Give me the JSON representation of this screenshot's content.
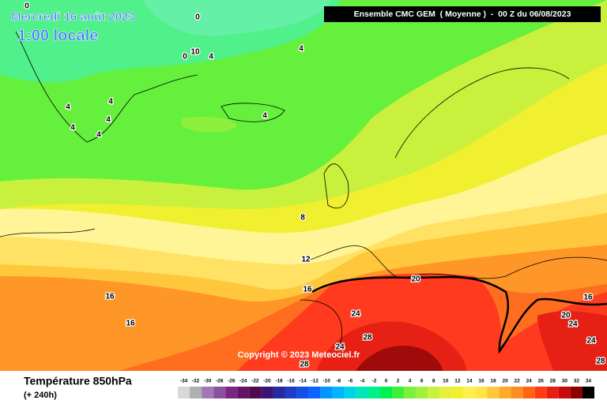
{
  "header": {
    "date": "Mercredi 16 août 2023",
    "time": "1:00 locale",
    "model": "Ensemble CMC GEM  ( Moyenne )  -  00 Z du 06/08/2023"
  },
  "footer": {
    "title": "Température 850hPa",
    "subtitle": "(+ 240h)",
    "copyright": "Copyright © 2023 Meteociel.fr"
  },
  "scale": {
    "labels": [
      -34,
      -32,
      -30,
      -28,
      -26,
      -24,
      -22,
      -20,
      -18,
      -16,
      -14,
      -12,
      -10,
      -8,
      -6,
      -4,
      -2,
      0,
      2,
      4,
      6,
      8,
      10,
      12,
      14,
      16,
      18,
      20,
      22,
      24,
      26,
      28,
      30,
      32,
      34
    ],
    "colors": [
      "#d8d8d8",
      "#b0b0b0",
      "#a078b4",
      "#8c50a0",
      "#782882",
      "#641464",
      "#500a50",
      "#3c1478",
      "#2828a0",
      "#1e3cc8",
      "#1450e6",
      "#0a64ff",
      "#0096ff",
      "#00b4ff",
      "#00d2e6",
      "#00e6b4",
      "#00f08c",
      "#00f050",
      "#3cf03c",
      "#78f03c",
      "#a0f03c",
      "#c8f03c",
      "#e6f03c",
      "#f0f030",
      "#fff050",
      "#ffe646",
      "#ffc83c",
      "#ffaa28",
      "#ff8c1e",
      "#ff6414",
      "#ff3c14",
      "#e61e14",
      "#c80a0a",
      "#8c0000",
      "#000000"
    ]
  },
  "map": {
    "contour_labels": [
      "0",
      "0",
      "0",
      "10",
      "4",
      "4",
      "4",
      "4",
      "4",
      "4",
      "4",
      "4",
      "8",
      "12",
      "16",
      "16",
      "16",
      "20",
      "16",
      "20",
      "24",
      "24",
      "28",
      "24",
      "28",
      "24",
      "28"
    ]
  }
}
